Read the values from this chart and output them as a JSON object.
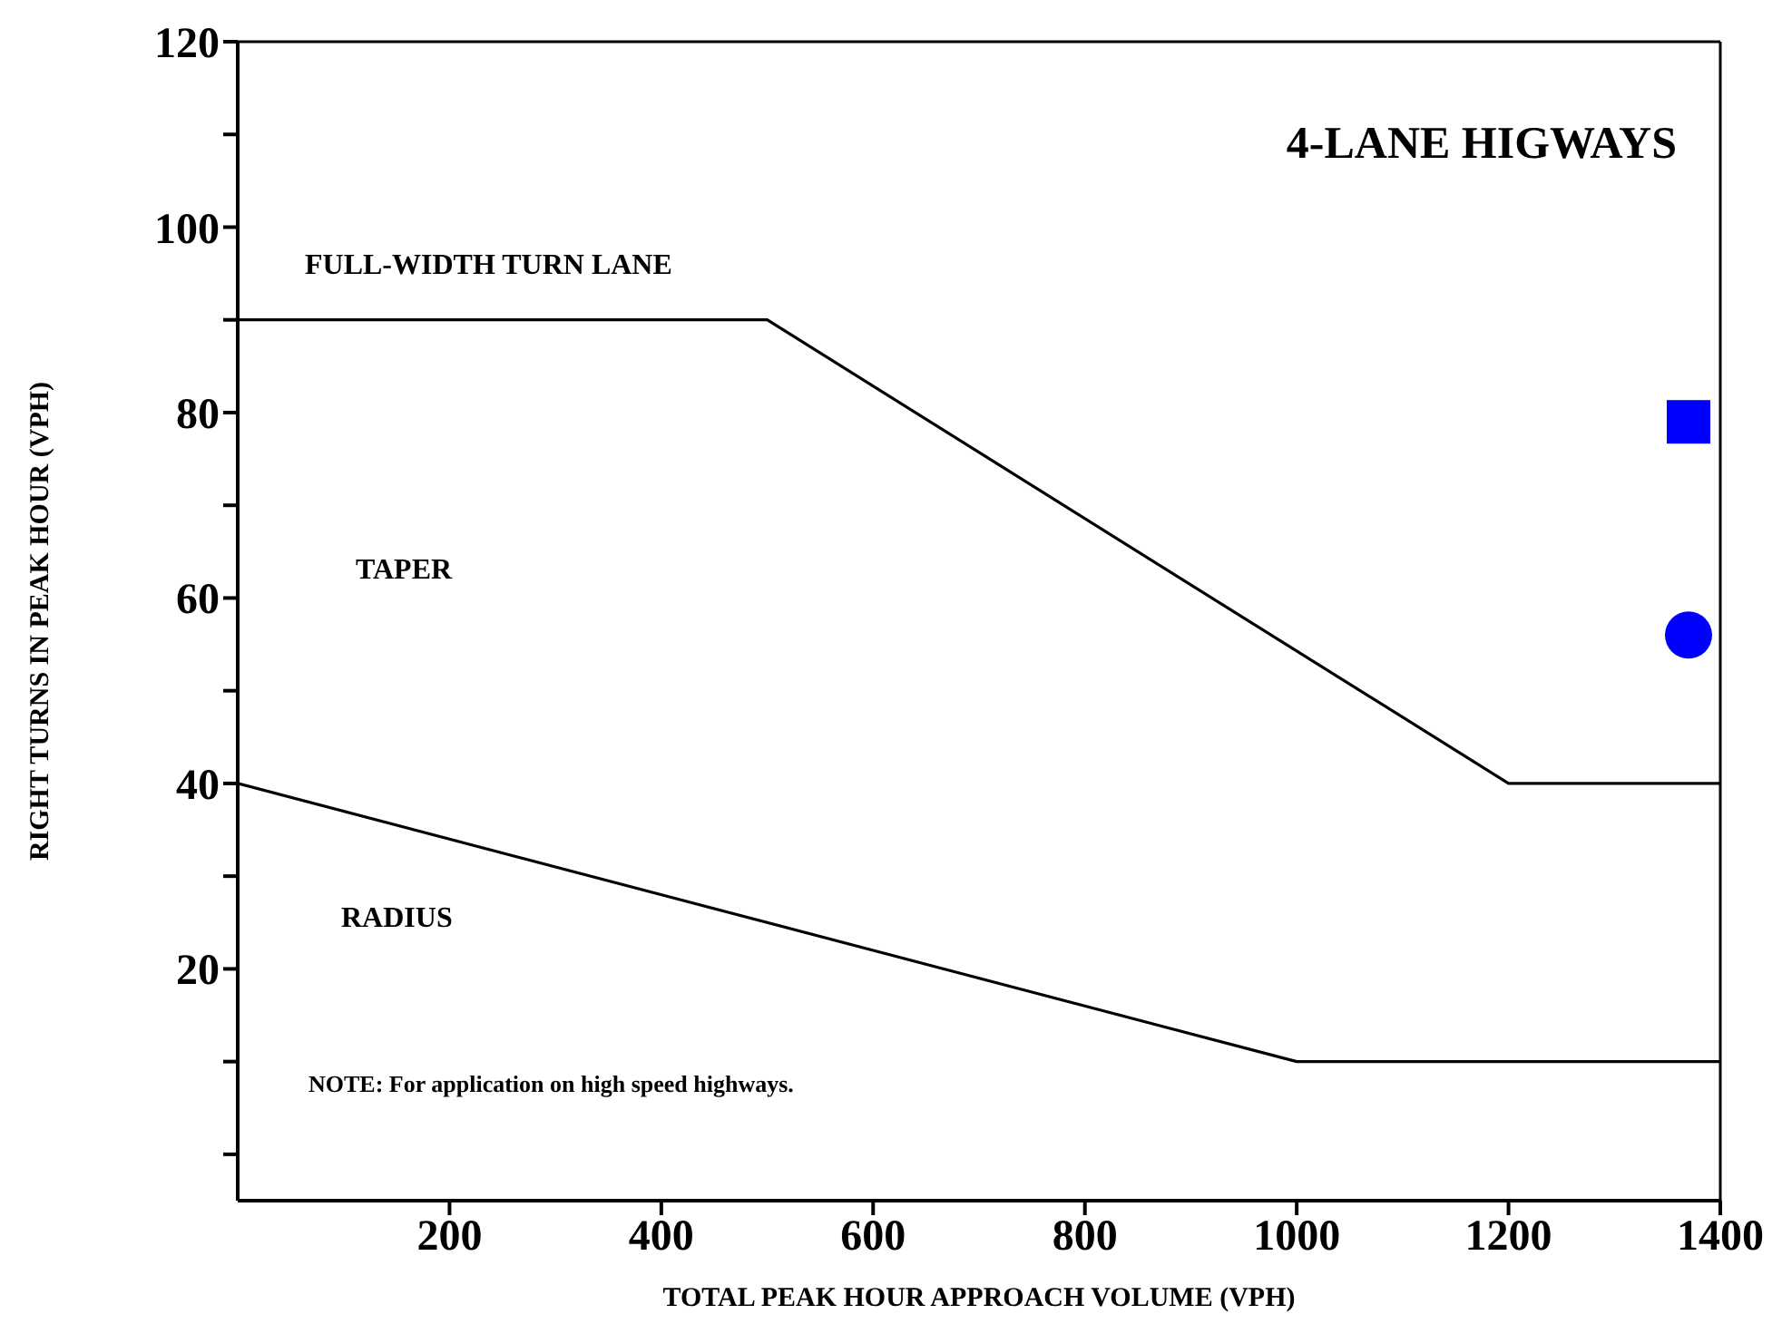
{
  "chart_data": {
    "type": "line",
    "title": "4-LANE HIGWAYS",
    "xlabel": "TOTAL PEAK HOUR APPROACH VOLUME (VPH)",
    "ylabel": "RIGHT TURNS IN PEAK HOUR (VPH)",
    "xlim": [
      0,
      1400
    ],
    "ylim": [
      -5,
      120
    ],
    "xticks": [
      200,
      400,
      600,
      800,
      1000,
      1200,
      1400
    ],
    "yticks": [
      {
        "value": 0,
        "label": null
      },
      {
        "value": 10,
        "label": null
      },
      20,
      {
        "value": 30,
        "label": null
      },
      40,
      {
        "value": 50,
        "label": null
      },
      60,
      {
        "value": 70,
        "label": null
      },
      80,
      {
        "value": 90,
        "label": null
      },
      100,
      {
        "value": 110,
        "label": null
      },
      120
    ],
    "marker": "none",
    "annotations": [
      "FULL-WIDTH TURN LANE",
      "TAPER",
      "RADIUS",
      "NOTE: For application on high speed highways."
    ],
    "series": [
      {
        "color": "#000000",
        "x": [
          0,
          500,
          1200,
          1400
        ],
        "values": [
          90,
          90,
          40,
          40
        ]
      },
      {
        "color": "#000000",
        "x": [
          0,
          1000,
          1400
        ],
        "values": [
          40,
          10,
          10
        ]
      },
      {
        "type": "scatter",
        "color": "#0000ff",
        "marker": "square",
        "x": [
          1370
        ],
        "values": [
          79
        ]
      },
      {
        "type": "scatter",
        "color": "#0000ff",
        "marker": "circle",
        "x": [
          1370
        ],
        "values": [
          56
        ]
      }
    ]
  }
}
